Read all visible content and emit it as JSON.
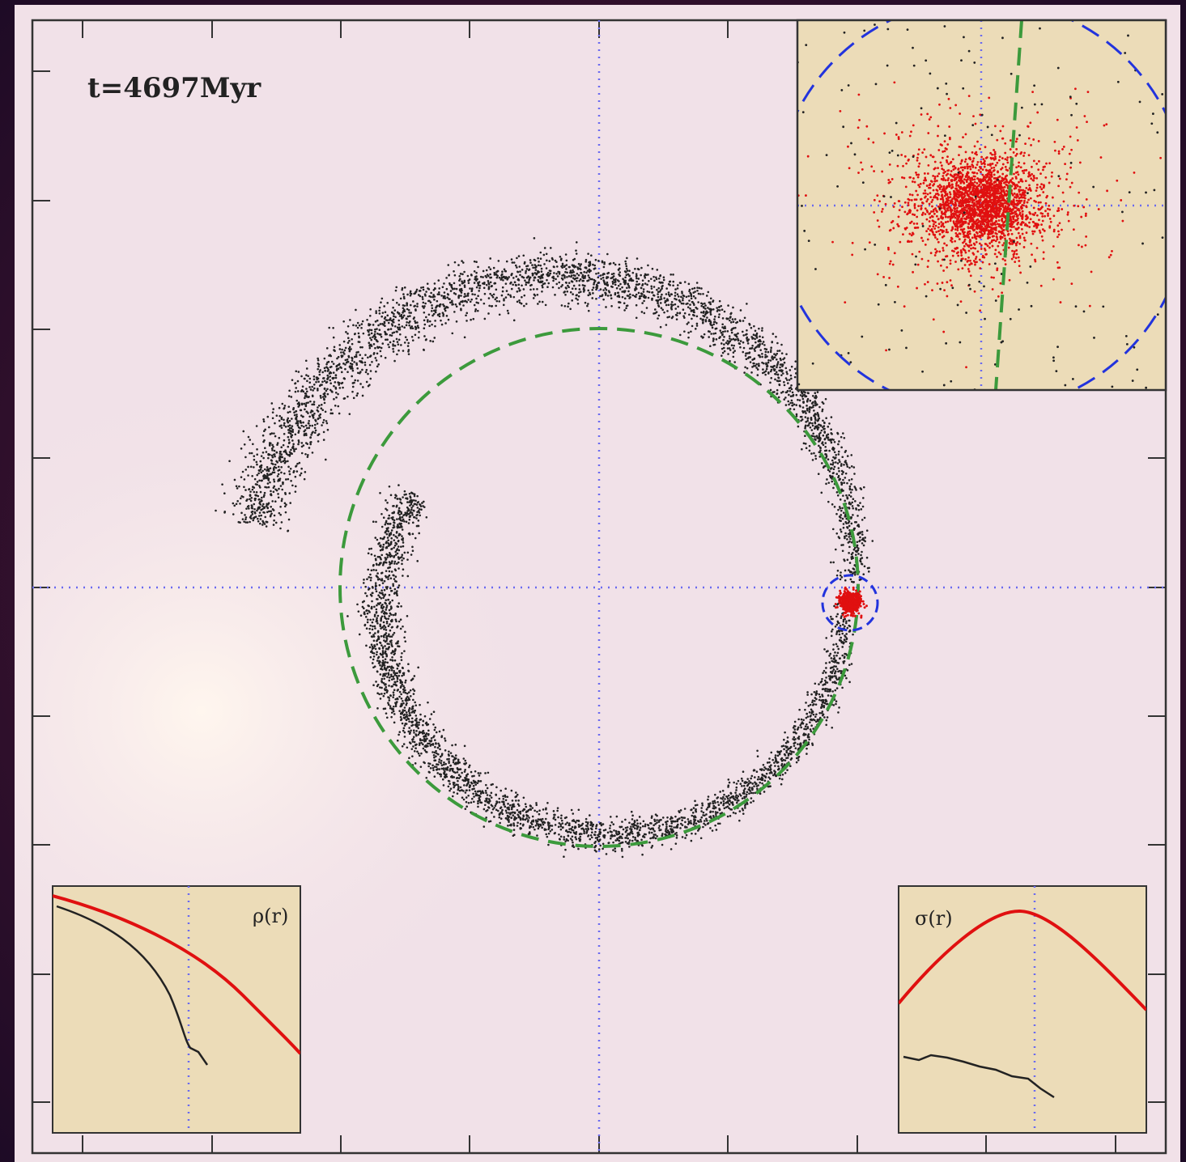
{
  "label": "t=4697Myr",
  "insets": {
    "density": {
      "label": "ρ(r)"
    },
    "dispersion": {
      "label": "σ(r)"
    }
  }
}
